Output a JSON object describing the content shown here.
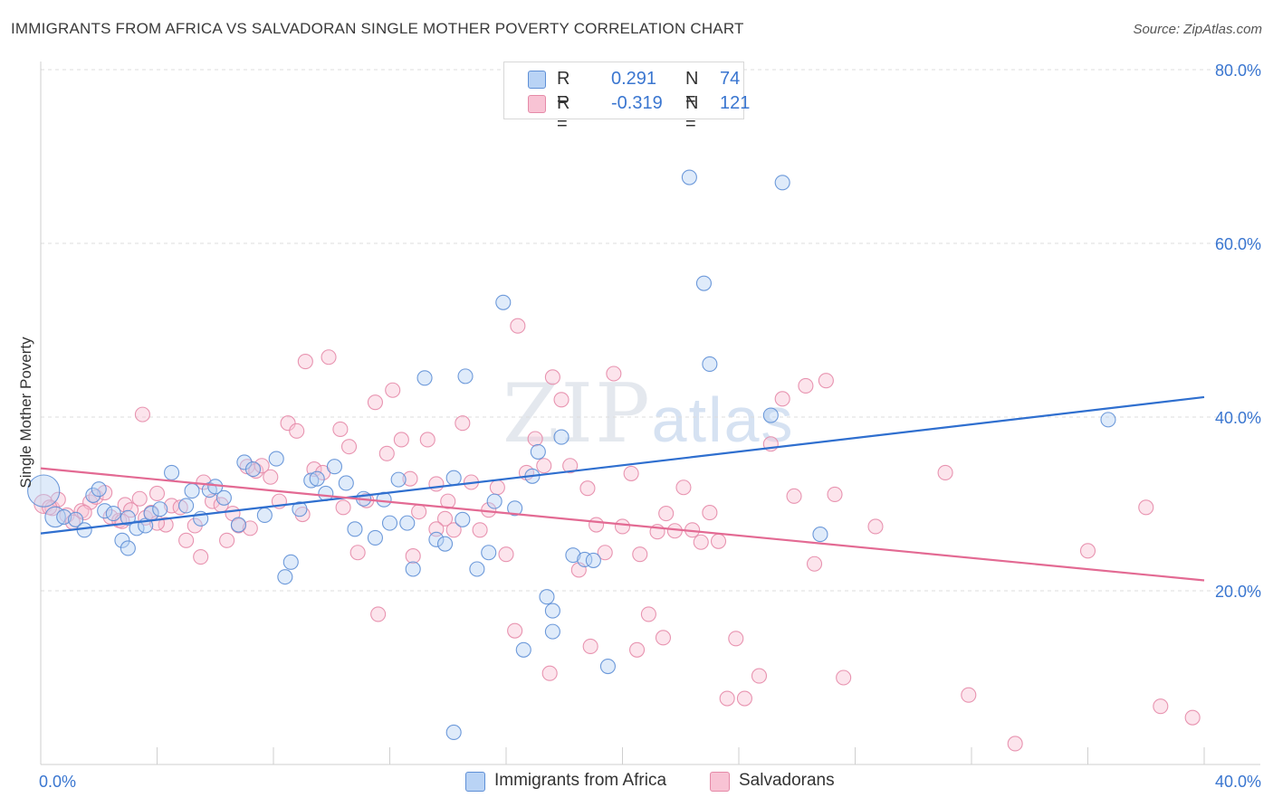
{
  "title": "IMMIGRANTS FROM AFRICA VS SALVADORAN SINGLE MOTHER POVERTY CORRELATION CHART",
  "source": "Source: ZipAtlas.com",
  "watermark": {
    "zip": "ZIP",
    "atlas": "atlas"
  },
  "legend": {
    "r_label": "R =",
    "n_label": "N =",
    "series": [
      {
        "name": "Immigrants from Africa",
        "r": "0.291",
        "n": "74"
      },
      {
        "name": "Salvadorans",
        "r": "-0.319",
        "n": "121"
      }
    ]
  },
  "colors": {
    "blue_fill": "#b9d3f5",
    "blue_stroke": "#5e8fd6",
    "blue_line": "#2f6fcf",
    "pink_fill": "#f8c3d4",
    "pink_stroke": "#e58aa8",
    "pink_line": "#e36a93",
    "axis_label": "#3a76d0",
    "grid": "#dcdcdc"
  },
  "chart_data": {
    "type": "scatter",
    "title": "IMMIGRANTS FROM AFRICA VS SALVADORAN SINGLE MOTHER POVERTY CORRELATION CHART",
    "xlabel": "",
    "ylabel": "Single Mother Poverty",
    "xlim": [
      0,
      40
    ],
    "ylim": [
      0,
      80
    ],
    "x_tick_labels": [
      {
        "value": 0,
        "label": "0.0%"
      },
      {
        "value": 40,
        "label": "40.0%"
      }
    ],
    "x_minor_ticks": [
      0,
      4,
      8,
      12,
      16,
      20,
      24,
      28,
      32,
      36,
      40
    ],
    "y_tick_labels": [
      {
        "value": 20,
        "label": "20.0%"
      },
      {
        "value": 40,
        "label": "40.0%"
      },
      {
        "value": 60,
        "label": "60.0%"
      },
      {
        "value": 80,
        "label": "80.0%"
      }
    ],
    "grid": true,
    "series": [
      {
        "name": "Immigrants from Africa",
        "r": 0.291,
        "n": 74,
        "trend": {
          "x": [
            0,
            40
          ],
          "y": [
            26.6,
            42.3
          ]
        },
        "points": [
          [
            0.1,
            31.5,
            2.2
          ],
          [
            0.5,
            28.5,
            1.4
          ],
          [
            0.8,
            28.5,
            1
          ],
          [
            1.2,
            28.2,
            1
          ],
          [
            1.5,
            27,
            1
          ],
          [
            1.8,
            31,
            1
          ],
          [
            2.0,
            31.7,
            1
          ],
          [
            2.2,
            29.2,
            1
          ],
          [
            2.5,
            28.9,
            1
          ],
          [
            2.8,
            25.8,
            1
          ],
          [
            3.0,
            28.4,
            1
          ],
          [
            3.3,
            27.2,
            1
          ],
          [
            3.6,
            27.5,
            1
          ],
          [
            3.8,
            28.9,
            1
          ],
          [
            4.1,
            29.4,
            1
          ],
          [
            4.5,
            33.6,
            1
          ],
          [
            5.0,
            29.8,
            1
          ],
          [
            5.2,
            31.5,
            1
          ],
          [
            5.5,
            28.3,
            1
          ],
          [
            5.8,
            31.6,
            1
          ],
          [
            6.3,
            30.7,
            1
          ],
          [
            6.8,
            27.6,
            1
          ],
          [
            7.0,
            34.8,
            1
          ],
          [
            7.3,
            34.0,
            1
          ],
          [
            7.7,
            28.7,
            1
          ],
          [
            8.1,
            35.2,
            1
          ],
          [
            8.4,
            21.6,
            1
          ],
          [
            8.6,
            23.3,
            1
          ],
          [
            8.9,
            29.4,
            1
          ],
          [
            9.3,
            32.7,
            1
          ],
          [
            9.5,
            32.9,
            1
          ],
          [
            9.8,
            31.2,
            1
          ],
          [
            10.1,
            34.3,
            1
          ],
          [
            10.5,
            32.4,
            1
          ],
          [
            10.8,
            27.1,
            1
          ],
          [
            11.1,
            30.6,
            1
          ],
          [
            11.5,
            26.1,
            1
          ],
          [
            11.8,
            30.5,
            1
          ],
          [
            12.0,
            27.8,
            1
          ],
          [
            12.3,
            32.8,
            1
          ],
          [
            12.6,
            27.8,
            1
          ],
          [
            12.8,
            22.5,
            1
          ],
          [
            13.2,
            44.5,
            1
          ],
          [
            13.6,
            25.9,
            1
          ],
          [
            13.9,
            25.4,
            1
          ],
          [
            14.2,
            33.0,
            1
          ],
          [
            14.5,
            28.2,
            1
          ],
          [
            14.6,
            44.7,
            1
          ],
          [
            15.0,
            22.5,
            1
          ],
          [
            15.4,
            24.4,
            1
          ],
          [
            15.6,
            30.3,
            1
          ],
          [
            15.9,
            53.2,
            1
          ],
          [
            16.3,
            29.5,
            1
          ],
          [
            16.6,
            13.2,
            1
          ],
          [
            16.9,
            33.2,
            1
          ],
          [
            17.1,
            36.0,
            1
          ],
          [
            17.4,
            19.3,
            1
          ],
          [
            17.6,
            17.7,
            1
          ],
          [
            17.6,
            15.3,
            1
          ],
          [
            17.9,
            37.7,
            1
          ],
          [
            18.3,
            24.1,
            1
          ],
          [
            18.7,
            23.6,
            1
          ],
          [
            19.0,
            23.5,
            1
          ],
          [
            19.5,
            11.3,
            1
          ],
          [
            22.3,
            67.6,
            1
          ],
          [
            22.8,
            55.4,
            1
          ],
          [
            23.0,
            46.1,
            1
          ],
          [
            25.1,
            40.2,
            1
          ],
          [
            25.5,
            67.0,
            1
          ],
          [
            26.8,
            26.5,
            1
          ],
          [
            36.7,
            39.7,
            1
          ],
          [
            14.2,
            3.7,
            1
          ],
          [
            3.0,
            24.9,
            1
          ],
          [
            6.0,
            32.0,
            1
          ]
        ]
      },
      {
        "name": "Salvadorans",
        "r": -0.319,
        "n": 121,
        "trend": {
          "x": [
            0,
            40
          ],
          "y": [
            34.1,
            21.2
          ]
        },
        "points": [
          [
            0.1,
            30.0,
            1.3
          ],
          [
            0.4,
            29.5,
            1
          ],
          [
            0.6,
            30.5,
            1
          ],
          [
            0.9,
            28.7,
            1
          ],
          [
            1.1,
            27.9,
            1
          ],
          [
            1.4,
            29.2,
            1
          ],
          [
            1.7,
            30.2,
            1
          ],
          [
            1.9,
            30.8,
            1
          ],
          [
            2.2,
            31.3,
            1
          ],
          [
            2.4,
            28.5,
            1
          ],
          [
            2.7,
            28.1,
            1
          ],
          [
            2.9,
            29.9,
            1
          ],
          [
            3.1,
            29.3,
            1
          ],
          [
            3.4,
            30.6,
            1
          ],
          [
            3.6,
            28.4,
            1
          ],
          [
            3.8,
            29.0,
            1
          ],
          [
            4.0,
            31.2,
            1
          ],
          [
            4.3,
            27.6,
            1
          ],
          [
            4.5,
            29.8,
            1
          ],
          [
            4.8,
            29.6,
            1
          ],
          [
            5.0,
            25.8,
            1
          ],
          [
            5.3,
            27.5,
            1
          ],
          [
            5.6,
            32.5,
            1
          ],
          [
            5.9,
            30.3,
            1
          ],
          [
            6.2,
            29.9,
            1
          ],
          [
            6.4,
            25.8,
            1
          ],
          [
            6.6,
            28.9,
            1
          ],
          [
            6.8,
            27.5,
            1
          ],
          [
            7.1,
            34.3,
            1
          ],
          [
            7.4,
            33.8,
            1
          ],
          [
            7.6,
            34.4,
            1
          ],
          [
            7.9,
            33.1,
            1
          ],
          [
            8.2,
            30.3,
            1
          ],
          [
            8.5,
            39.3,
            1
          ],
          [
            8.8,
            38.4,
            1
          ],
          [
            9.1,
            46.4,
            1
          ],
          [
            9.4,
            34.0,
            1
          ],
          [
            9.7,
            33.6,
            1
          ],
          [
            9.9,
            46.9,
            1
          ],
          [
            10.3,
            38.6,
            1
          ],
          [
            10.6,
            36.6,
            1
          ],
          [
            10.9,
            24.4,
            1
          ],
          [
            11.2,
            30.4,
            1
          ],
          [
            11.5,
            41.7,
            1
          ],
          [
            11.9,
            35.8,
            1
          ],
          [
            12.1,
            43.1,
            1
          ],
          [
            12.4,
            37.4,
            1
          ],
          [
            12.7,
            32.9,
            1
          ],
          [
            13.0,
            29.1,
            1
          ],
          [
            13.3,
            37.4,
            1
          ],
          [
            13.6,
            32.3,
            1
          ],
          [
            13.9,
            28.3,
            1
          ],
          [
            14.2,
            27.0,
            1
          ],
          [
            14.5,
            39.3,
            1
          ],
          [
            14.8,
            32.5,
            1
          ],
          [
            15.1,
            27.0,
            1
          ],
          [
            15.4,
            29.3,
            1
          ],
          [
            15.7,
            31.9,
            1
          ],
          [
            16.0,
            24.2,
            1
          ],
          [
            16.4,
            50.5,
            1
          ],
          [
            16.7,
            33.6,
            1
          ],
          [
            17.0,
            37.5,
            1
          ],
          [
            17.3,
            34.4,
            1
          ],
          [
            17.6,
            44.6,
            1
          ],
          [
            17.9,
            42.0,
            1
          ],
          [
            18.2,
            34.4,
            1
          ],
          [
            18.5,
            22.4,
            1
          ],
          [
            18.8,
            31.8,
            1
          ],
          [
            19.1,
            27.6,
            1
          ],
          [
            19.4,
            24.4,
            1
          ],
          [
            19.7,
            45.0,
            1
          ],
          [
            20.0,
            27.4,
            1
          ],
          [
            20.3,
            33.5,
            1
          ],
          [
            20.6,
            24.2,
            1
          ],
          [
            20.9,
            17.3,
            1
          ],
          [
            21.2,
            26.8,
            1
          ],
          [
            21.5,
            28.9,
            1
          ],
          [
            21.8,
            26.9,
            1
          ],
          [
            22.1,
            31.9,
            1
          ],
          [
            22.4,
            27.0,
            1
          ],
          [
            22.7,
            25.6,
            1
          ],
          [
            23.0,
            29.0,
            1
          ],
          [
            23.3,
            25.7,
            1
          ],
          [
            23.6,
            7.6,
            1
          ],
          [
            23.9,
            14.5,
            1
          ],
          [
            24.2,
            7.6,
            1
          ],
          [
            24.7,
            10.2,
            1
          ],
          [
            25.1,
            36.9,
            1
          ],
          [
            25.5,
            42.1,
            1
          ],
          [
            25.9,
            30.9,
            1
          ],
          [
            26.3,
            43.6,
            1
          ],
          [
            26.6,
            23.1,
            1
          ],
          [
            27.0,
            44.2,
            1
          ],
          [
            27.3,
            31.1,
            1
          ],
          [
            27.6,
            10.0,
            1
          ],
          [
            28.7,
            27.4,
            1
          ],
          [
            31.1,
            33.6,
            1
          ],
          [
            31.9,
            8.0,
            1
          ],
          [
            33.5,
            2.4,
            1
          ],
          [
            36.0,
            24.6,
            1
          ],
          [
            38.0,
            29.6,
            1
          ],
          [
            38.5,
            6.7,
            1
          ],
          [
            39.6,
            5.4,
            1
          ],
          [
            21.4,
            14.6,
            1
          ],
          [
            20.5,
            13.2,
            1
          ],
          [
            18.9,
            13.6,
            1
          ],
          [
            17.5,
            10.5,
            1
          ],
          [
            16.3,
            15.4,
            1
          ],
          [
            13.6,
            27.1,
            1
          ],
          [
            12.8,
            24.0,
            1
          ],
          [
            11.6,
            17.3,
            1
          ],
          [
            3.5,
            40.3,
            1
          ],
          [
            4.0,
            27.8,
            1
          ],
          [
            2.8,
            28.0,
            1
          ],
          [
            1.5,
            29.0,
            1
          ],
          [
            0.3,
            29.6,
            1
          ],
          [
            5.5,
            23.9,
            1
          ],
          [
            7.2,
            27.2,
            1
          ],
          [
            9.0,
            28.8,
            1
          ],
          [
            10.4,
            29.6,
            1
          ],
          [
            14.0,
            30.3,
            1
          ]
        ]
      }
    ]
  }
}
